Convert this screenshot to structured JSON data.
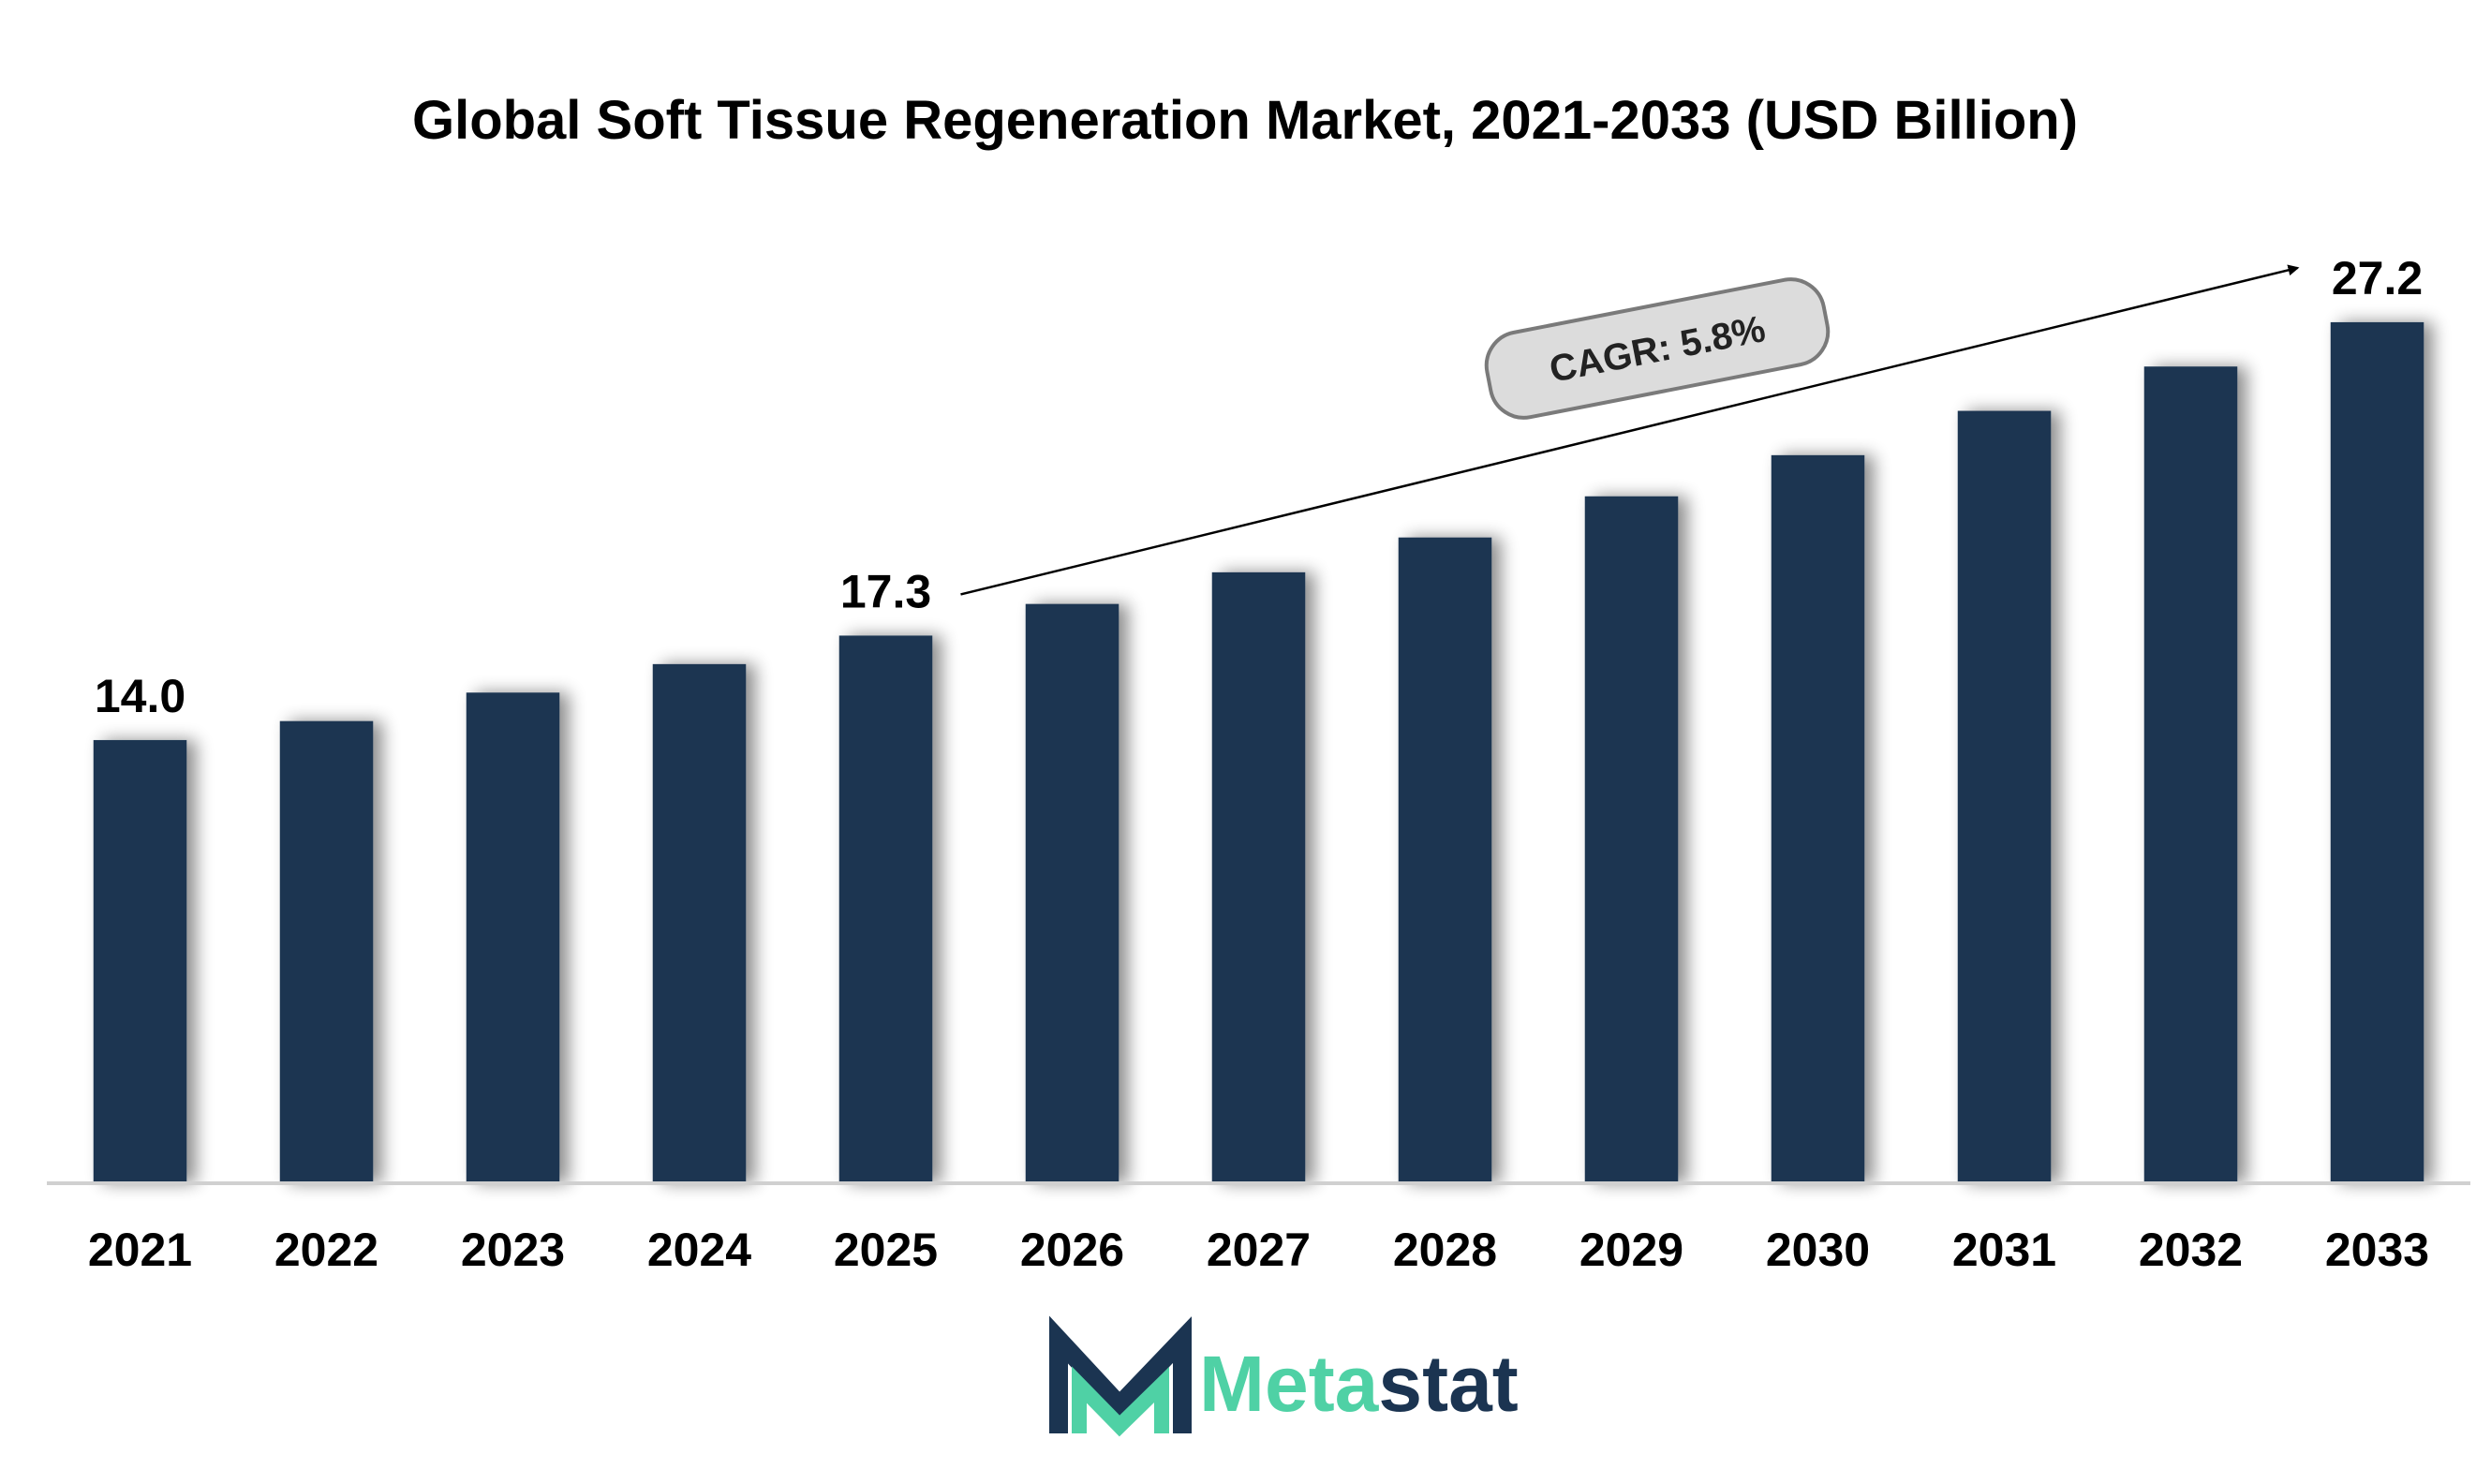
{
  "chart_data": {
    "type": "bar",
    "title": "Global Soft Tissue Regeneration Market, 2021-2033 (USD Billion)",
    "categories": [
      "2021",
      "2022",
      "2023",
      "2024",
      "2025",
      "2026",
      "2027",
      "2028",
      "2029",
      "2030",
      "2031",
      "2032",
      "2033"
    ],
    "values": [
      14.0,
      14.6,
      15.5,
      16.4,
      17.3,
      18.3,
      19.3,
      20.4,
      21.7,
      23.0,
      24.4,
      25.8,
      27.2
    ],
    "labeled_values": {
      "2021": "14.0",
      "2025": "17.3",
      "2033": "27.2"
    },
    "ylim": [
      0,
      28.5
    ],
    "xlabel": "",
    "ylabel": "",
    "grid": false,
    "bar_color": "#1b3451",
    "annotation": {
      "text": "CAGR: 5.8%",
      "from_category": "2025",
      "to_category": "2033"
    }
  },
  "logo": {
    "text_primary": "Meta",
    "text_secondary": "stat",
    "primary_color": "#4fd1a5",
    "secondary_color": "#1b3451"
  }
}
